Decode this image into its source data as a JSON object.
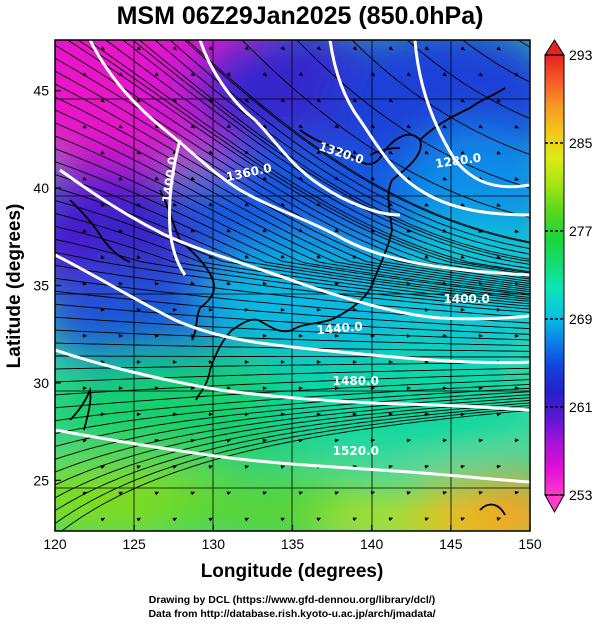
{
  "title": "MSM 06Z29Jan2025 (850.0hPa)",
  "xlabel": "Longitude (degrees)",
  "ylabel": "Latitude  (degrees)",
  "credits": [
    "Drawing by DCL (https://www.gfd-dennou.org/library/dcl/)",
    "Data from http://database.rish.kyoto-u.ac.jp/arch/jmadata/"
  ],
  "map": {
    "lon_range": [
      120,
      150
    ],
    "lat_range": [
      22.4,
      47.6
    ],
    "lon_ticks": [
      "120",
      "125",
      "130",
      "135",
      "140",
      "145",
      "150"
    ],
    "lat_ticks": [
      "25",
      "30",
      "35",
      "40",
      "45"
    ],
    "field": "temperature (K)",
    "contour_field": "geopotential height (m)",
    "contour_labels": [
      {
        "text": "1400.0",
        "lon": 127.5,
        "lat": 40.4,
        "angle": -82
      },
      {
        "text": "1360.0",
        "lon": 132.3,
        "lat": 40.6,
        "angle": -12
      },
      {
        "text": "1320.0",
        "lon": 138.0,
        "lat": 41.6,
        "angle": 18
      },
      {
        "text": "1280.0",
        "lon": 145.5,
        "lat": 41.2,
        "angle": -8
      },
      {
        "text": "1400.0",
        "lon": 146.0,
        "lat": 34.1,
        "angle": 0
      },
      {
        "text": "1440.0",
        "lon": 138.0,
        "lat": 32.6,
        "angle": -5
      },
      {
        "text": "1480.0",
        "lon": 139.0,
        "lat": 29.9,
        "angle": 0
      },
      {
        "text": "1520.0",
        "lon": 139.0,
        "lat": 26.3,
        "angle": 0
      }
    ]
  },
  "colorbar": {
    "ticks": [
      "293",
      "285",
      "277",
      "269",
      "261",
      "253"
    ],
    "min": 253,
    "max": 293,
    "colors": [
      "#ff3cc8",
      "#e20fd6",
      "#a812d7",
      "#5b17d3",
      "#2222c8",
      "#1245e0",
      "#0b86e8",
      "#07c7e0",
      "#0ee4b4",
      "#12dd6e",
      "#1ed43a",
      "#5cd81c",
      "#a5e414",
      "#dcea14",
      "#f2c81a",
      "#f79a22",
      "#f65a28",
      "#e62222"
    ]
  }
}
